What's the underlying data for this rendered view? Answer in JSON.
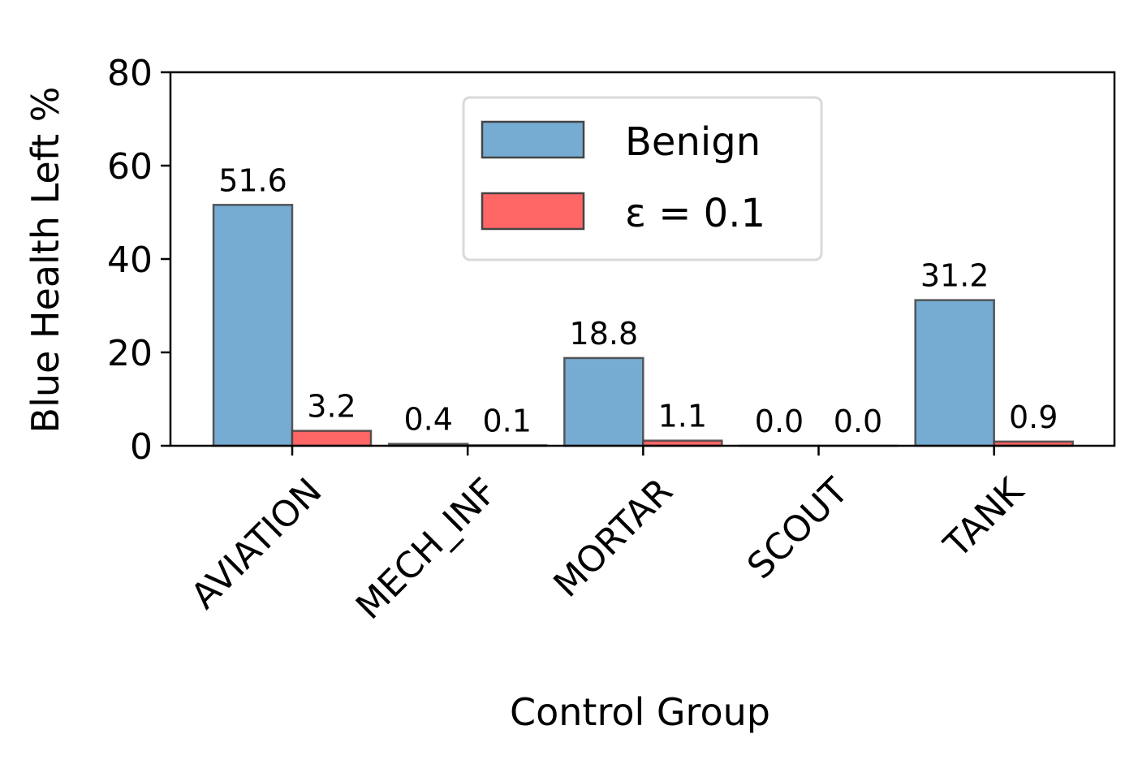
{
  "chart_data": {
    "type": "bar",
    "title": "",
    "xlabel": "Control Group",
    "ylabel": "Blue Health Left %",
    "categories": [
      "AVIATION",
      "MECH_INF",
      "MORTAR",
      "SCOUT",
      "TANK"
    ],
    "series": [
      {
        "name": "Benign",
        "color": "#77acd2",
        "values": [
          51.6,
          0.4,
          18.8,
          0.0,
          31.2
        ],
        "labels": [
          "51.6",
          "0.4",
          "18.8",
          "0.0",
          "31.2"
        ]
      },
      {
        "name": "ε = 0.1",
        "color": "#ff6666",
        "values": [
          3.2,
          0.1,
          1.1,
          0.0,
          0.9
        ],
        "labels": [
          "3.2",
          "0.1",
          "1.1",
          "0.0",
          "0.9"
        ]
      }
    ],
    "ylim": [
      0,
      80
    ],
    "yticks": [
      0,
      20,
      40,
      60,
      80
    ],
    "ytick_labels": [
      "0",
      "20",
      "40",
      "60",
      "80"
    ],
    "grid": false,
    "legend_position": "top-center"
  }
}
